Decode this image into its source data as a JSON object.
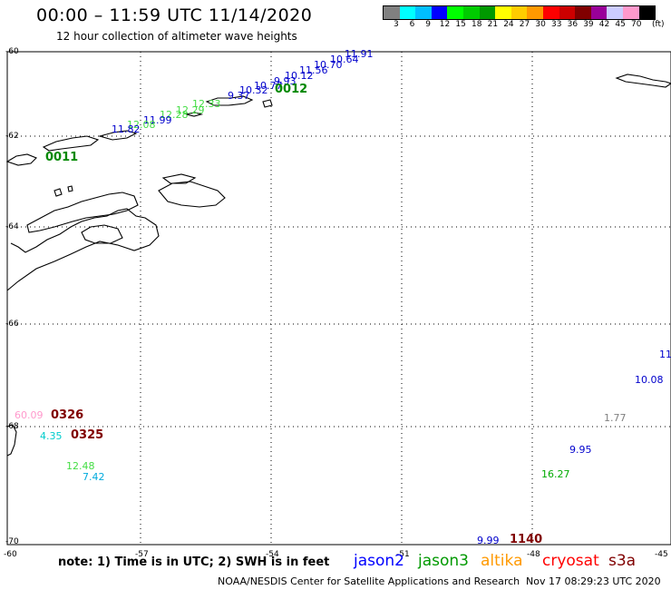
{
  "header": {
    "title": "00:00 – 11:59 UTC 11/14/2020",
    "subtitle": "12 hour collection of altimeter wave heights"
  },
  "legend": {
    "unit": "(ft)",
    "colors": [
      "#808080",
      "#00ffff",
      "#00bfff",
      "#0000ff",
      "#00ff00",
      "#00cc00",
      "#009900",
      "#ffff00",
      "#ffcc00",
      "#ff9900",
      "#ff0000",
      "#cc0000",
      "#800000",
      "#990099",
      "#ccccff",
      "#ff99cc",
      "#000000"
    ],
    "labels": [
      "3",
      "6",
      "9",
      "12",
      "15",
      "18",
      "21",
      "24",
      "27",
      "30",
      "33",
      "36",
      "39",
      "42",
      "45",
      "70"
    ]
  },
  "axes": {
    "lat_labels": [
      "-60",
      "-62",
      "-64",
      "-66",
      "-68",
      "-70"
    ],
    "lon_labels": [
      "-60",
      "-57",
      "-54",
      "-51",
      "-48",
      "-45"
    ]
  },
  "swh_values": [
    {
      "text": "11.91",
      "color": "#0000cc"
    },
    {
      "text": "10.64",
      "color": "#0000cc"
    },
    {
      "text": "10.70",
      "color": "#0000cc"
    },
    {
      "text": "11.56",
      "color": "#0000cc"
    },
    {
      "text": "10.12",
      "color": "#0000cc"
    },
    {
      "text": "9.93",
      "color": "#0000cc"
    },
    {
      "text": "10.77",
      "color": "#0000cc"
    },
    {
      "text": "10.32",
      "color": "#0000cc"
    },
    {
      "text": "9.37",
      "color": "#0000cc"
    },
    {
      "text": "12.33",
      "color": "#44dd44"
    },
    {
      "text": "12.29",
      "color": "#44dd44"
    },
    {
      "text": "12.28",
      "color": "#44dd44"
    },
    {
      "text": "11.99",
      "color": "#0000cc"
    },
    {
      "text": "12.08",
      "color": "#44dd44"
    },
    {
      "text": "11.82",
      "color": "#0000cc"
    },
    {
      "text": "60.09",
      "color": "#ff99cc"
    },
    {
      "text": "4.35",
      "color": "#00cccc"
    },
    {
      "text": "12.48",
      "color": "#44dd44"
    },
    {
      "text": "7.42",
      "color": "#00aadd"
    },
    {
      "text": "11",
      "color": "#0000cc"
    },
    {
      "text": "10.08",
      "color": "#0000cc"
    },
    {
      "text": "1.77",
      "color": "#808080"
    },
    {
      "text": "9.95",
      "color": "#0000cc"
    },
    {
      "text": "16.27",
      "color": "#00aa00"
    },
    {
      "text": "9.99",
      "color": "#0000cc"
    }
  ],
  "time_labels": [
    {
      "text": "0012",
      "color": "#008800"
    },
    {
      "text": "0011",
      "color": "#008800"
    },
    {
      "text": "0326",
      "color": "#800000"
    },
    {
      "text": "0325",
      "color": "#800000"
    },
    {
      "text": "1140",
      "color": "#800000"
    }
  ],
  "footer": {
    "note": "note: 1) Time is in UTC; 2) SWH is in feet",
    "satellites": [
      {
        "name": "jason2",
        "color": "#0000ff"
      },
      {
        "name": "jason3",
        "color": "#009900"
      },
      {
        "name": "altika",
        "color": "#ff9900"
      },
      {
        "name": "cryosat",
        "color": "#ff0000"
      },
      {
        "name": "s3a",
        "color": "#800000"
      }
    ],
    "credit": "NOAA/NESDIS Center for Satellite Applications and Research",
    "timestamp": "Nov 17 08:29:23 UTC 2020"
  }
}
